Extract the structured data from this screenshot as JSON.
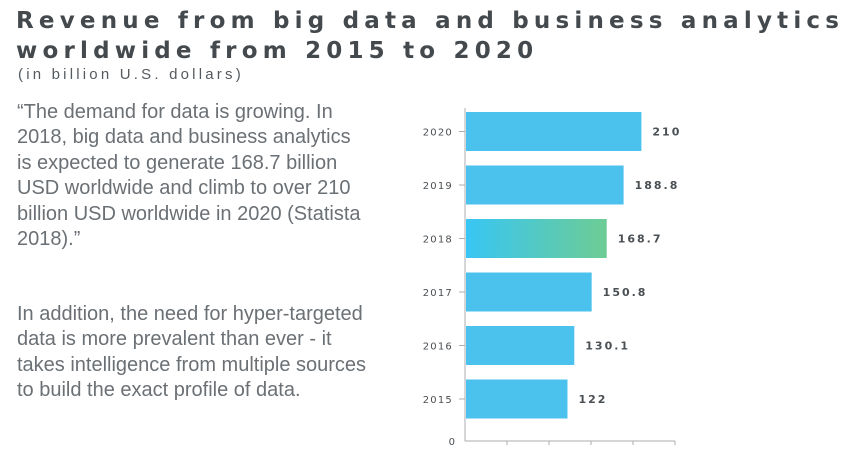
{
  "header": {
    "title_line1": "Revenue from big data and business analytics",
    "title_line2": "worldwide from 2015 to 2020",
    "subtitle": "(in billion U.S. dollars)"
  },
  "text": {
    "quote": "“The demand for data is growing. In 2018, big data and business analytics is expected to generate 168.7 billion USD worldwide and climb to over 210 billion USD worldwide in 2020 (Statista 2018).”",
    "addition": "In addition, the need for hyper-targeted data is more prevalent than ever - it takes intelligence from multiple sources to build the exact profile of data."
  },
  "colors": {
    "bar": "#4bc2ee",
    "highlight_start": "#38c6f4",
    "highlight_end": "#6dcc94",
    "axis": "#a8acaf",
    "label": "#4a4f53"
  },
  "chart_data": {
    "type": "bar",
    "orientation": "horizontal",
    "categories": [
      "2020",
      "2019",
      "2018",
      "2017",
      "2016",
      "2015"
    ],
    "values": [
      210,
      188.8,
      168.7,
      150.8,
      130.1,
      122
    ],
    "value_labels": [
      "210",
      "188.8",
      "168.7",
      "150.8",
      "130.1",
      "122"
    ],
    "highlight": "2018",
    "xlim": [
      0,
      250
    ],
    "x_ticks": [
      0,
      50,
      100,
      150,
      200,
      250
    ],
    "x_tick_labels": [
      "0",
      "50",
      "100",
      "150",
      "200",
      "250"
    ],
    "grid": false,
    "legend": "none"
  }
}
